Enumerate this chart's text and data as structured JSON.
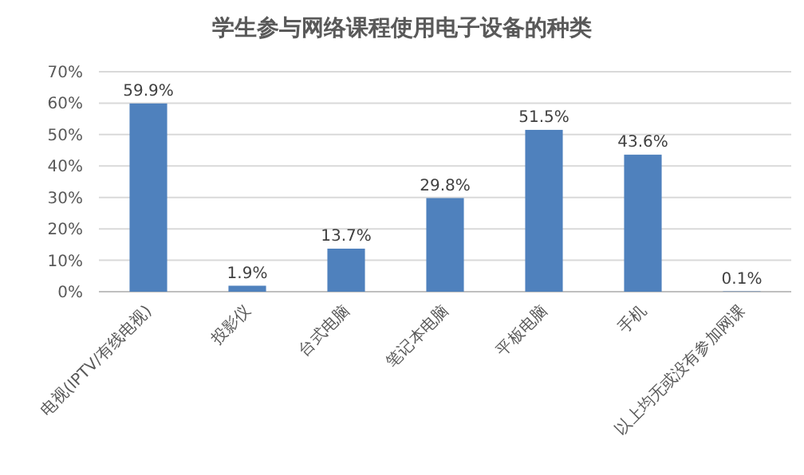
{
  "chart_data": {
    "type": "bar",
    "title": "学生参与网络课程使用电子设备的种类",
    "categories": [
      "电视(IPTV/有线电视)",
      "投影仪",
      "台式电脑",
      "笔记本电脑",
      "平板电脑",
      "手机",
      "以上均无或没有参加网课"
    ],
    "series": [
      {
        "color": "#4f81bd",
        "values": [
          59.9,
          1.9,
          13.7,
          29.8,
          51.5,
          43.6,
          0.1
        ],
        "value_labels": [
          "59.9%",
          "1.9%",
          "13.7%",
          "29.8%",
          "51.5%",
          "43.6%",
          "0.1%"
        ]
      }
    ],
    "ylim": [
      0,
      70
    ],
    "yticks": [
      {
        "value": 0,
        "label": "0%"
      },
      {
        "value": 10,
        "label": "10%"
      },
      {
        "value": 20,
        "label": "20%"
      },
      {
        "value": 30,
        "label": "30%"
      },
      {
        "value": 40,
        "label": "40%"
      },
      {
        "value": 50,
        "label": "50%"
      },
      {
        "value": 60,
        "label": "60%"
      },
      {
        "value": 70,
        "label": "70%"
      }
    ],
    "grid": "y"
  }
}
